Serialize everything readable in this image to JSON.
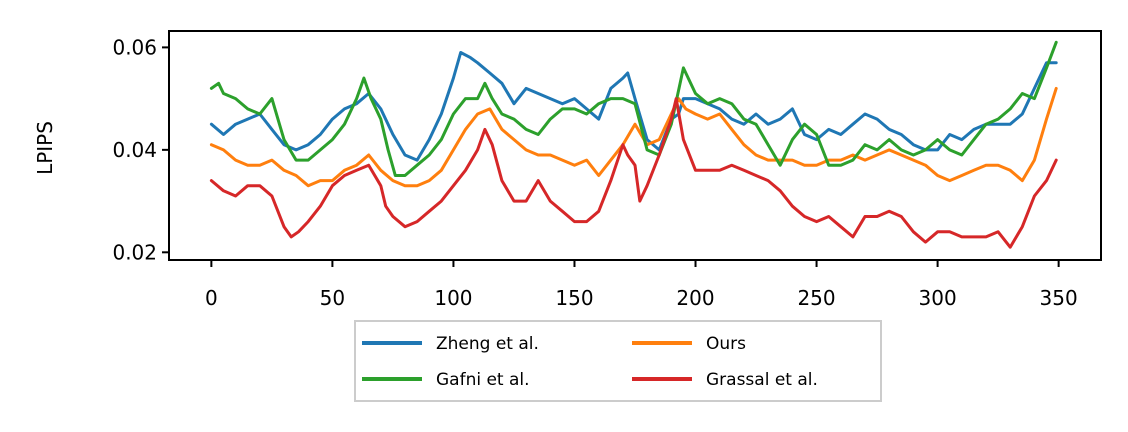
{
  "chart_data": {
    "type": "line",
    "title": "",
    "xlabel": "",
    "ylabel": "LPIPS",
    "xlim": [
      -17.5,
      367.5
    ],
    "ylim": [
      0.0185,
      0.0632
    ],
    "xticks": [
      0,
      50,
      100,
      150,
      200,
      250,
      300,
      350
    ],
    "xtick_labels": [
      "0",
      "50",
      "100",
      "150",
      "200",
      "250",
      "300",
      "350"
    ],
    "yticks": [
      0.02,
      0.04,
      0.06
    ],
    "ytick_labels": [
      "0.02",
      "0.04",
      "0.06"
    ],
    "grid": false,
    "legend_placement": "below the plot, centered, two columns",
    "series": [
      {
        "name": "Zheng et al.",
        "color": "#1f77b4",
        "points": [
          [
            0,
            0.045
          ],
          [
            5,
            0.043
          ],
          [
            10,
            0.045
          ],
          [
            15,
            0.046
          ],
          [
            20,
            0.047
          ],
          [
            25,
            0.044
          ],
          [
            30,
            0.041
          ],
          [
            35,
            0.04
          ],
          [
            40,
            0.041
          ],
          [
            45,
            0.043
          ],
          [
            50,
            0.046
          ],
          [
            55,
            0.048
          ],
          [
            60,
            0.049
          ],
          [
            65,
            0.051
          ],
          [
            70,
            0.048
          ],
          [
            75,
            0.043
          ],
          [
            80,
            0.039
          ],
          [
            85,
            0.038
          ],
          [
            90,
            0.042
          ],
          [
            95,
            0.047
          ],
          [
            100,
            0.054
          ],
          [
            103,
            0.059
          ],
          [
            107,
            0.058
          ],
          [
            110,
            0.057
          ],
          [
            115,
            0.055
          ],
          [
            120,
            0.053
          ],
          [
            125,
            0.049
          ],
          [
            130,
            0.052
          ],
          [
            135,
            0.051
          ],
          [
            140,
            0.05
          ],
          [
            145,
            0.049
          ],
          [
            150,
            0.05
          ],
          [
            155,
            0.048
          ],
          [
            160,
            0.046
          ],
          [
            165,
            0.052
          ],
          [
            170,
            0.054
          ],
          [
            172,
            0.055
          ],
          [
            175,
            0.05
          ],
          [
            180,
            0.042
          ],
          [
            185,
            0.04
          ],
          [
            190,
            0.046
          ],
          [
            193,
            0.047
          ],
          [
            195,
            0.05
          ],
          [
            200,
            0.05
          ],
          [
            205,
            0.049
          ],
          [
            210,
            0.048
          ],
          [
            215,
            0.046
          ],
          [
            220,
            0.045
          ],
          [
            225,
            0.047
          ],
          [
            230,
            0.045
          ],
          [
            235,
            0.046
          ],
          [
            240,
            0.048
          ],
          [
            245,
            0.043
          ],
          [
            250,
            0.042
          ],
          [
            255,
            0.044
          ],
          [
            260,
            0.043
          ],
          [
            265,
            0.045
          ],
          [
            270,
            0.047
          ],
          [
            275,
            0.046
          ],
          [
            280,
            0.044
          ],
          [
            285,
            0.043
          ],
          [
            290,
            0.041
          ],
          [
            295,
            0.04
          ],
          [
            300,
            0.04
          ],
          [
            305,
            0.043
          ],
          [
            310,
            0.042
          ],
          [
            315,
            0.044
          ],
          [
            320,
            0.045
          ],
          [
            325,
            0.045
          ],
          [
            330,
            0.045
          ],
          [
            335,
            0.047
          ],
          [
            340,
            0.052
          ],
          [
            345,
            0.057
          ],
          [
            349,
            0.057
          ]
        ]
      },
      {
        "name": "Ours",
        "color": "#ff7f0e",
        "points": [
          [
            0,
            0.041
          ],
          [
            5,
            0.04
          ],
          [
            10,
            0.038
          ],
          [
            15,
            0.037
          ],
          [
            20,
            0.037
          ],
          [
            25,
            0.038
          ],
          [
            30,
            0.036
          ],
          [
            35,
            0.035
          ],
          [
            40,
            0.033
          ],
          [
            45,
            0.034
          ],
          [
            50,
            0.034
          ],
          [
            55,
            0.036
          ],
          [
            60,
            0.037
          ],
          [
            65,
            0.039
          ],
          [
            70,
            0.036
          ],
          [
            75,
            0.034
          ],
          [
            80,
            0.033
          ],
          [
            85,
            0.033
          ],
          [
            90,
            0.034
          ],
          [
            95,
            0.036
          ],
          [
            100,
            0.04
          ],
          [
            105,
            0.044
          ],
          [
            110,
            0.047
          ],
          [
            115,
            0.048
          ],
          [
            120,
            0.044
          ],
          [
            125,
            0.042
          ],
          [
            130,
            0.04
          ],
          [
            135,
            0.039
          ],
          [
            140,
            0.039
          ],
          [
            145,
            0.038
          ],
          [
            150,
            0.037
          ],
          [
            155,
            0.038
          ],
          [
            160,
            0.035
          ],
          [
            165,
            0.038
          ],
          [
            170,
            0.041
          ],
          [
            175,
            0.045
          ],
          [
            180,
            0.041
          ],
          [
            185,
            0.042
          ],
          [
            190,
            0.047
          ],
          [
            193,
            0.05
          ],
          [
            196,
            0.048
          ],
          [
            200,
            0.047
          ],
          [
            205,
            0.046
          ],
          [
            210,
            0.047
          ],
          [
            215,
            0.044
          ],
          [
            220,
            0.041
          ],
          [
            225,
            0.039
          ],
          [
            230,
            0.038
          ],
          [
            235,
            0.038
          ],
          [
            240,
            0.038
          ],
          [
            245,
            0.037
          ],
          [
            250,
            0.037
          ],
          [
            255,
            0.038
          ],
          [
            260,
            0.038
          ],
          [
            265,
            0.039
          ],
          [
            270,
            0.038
          ],
          [
            275,
            0.039
          ],
          [
            280,
            0.04
          ],
          [
            285,
            0.039
          ],
          [
            290,
            0.038
          ],
          [
            295,
            0.037
          ],
          [
            300,
            0.035
          ],
          [
            305,
            0.034
          ],
          [
            310,
            0.035
          ],
          [
            315,
            0.036
          ],
          [
            320,
            0.037
          ],
          [
            325,
            0.037
          ],
          [
            330,
            0.036
          ],
          [
            335,
            0.034
          ],
          [
            340,
            0.038
          ],
          [
            345,
            0.046
          ],
          [
            349,
            0.052
          ]
        ]
      },
      {
        "name": "Gafni et al.",
        "color": "#2ca02c",
        "points": [
          [
            0,
            0.052
          ],
          [
            3,
            0.053
          ],
          [
            5,
            0.051
          ],
          [
            10,
            0.05
          ],
          [
            15,
            0.048
          ],
          [
            20,
            0.047
          ],
          [
            25,
            0.05
          ],
          [
            30,
            0.042
          ],
          [
            35,
            0.038
          ],
          [
            40,
            0.038
          ],
          [
            45,
            0.04
          ],
          [
            50,
            0.042
          ],
          [
            55,
            0.045
          ],
          [
            60,
            0.05
          ],
          [
            63,
            0.054
          ],
          [
            66,
            0.05
          ],
          [
            70,
            0.046
          ],
          [
            73,
            0.04
          ],
          [
            76,
            0.035
          ],
          [
            80,
            0.035
          ],
          [
            85,
            0.037
          ],
          [
            90,
            0.039
          ],
          [
            95,
            0.042
          ],
          [
            100,
            0.047
          ],
          [
            105,
            0.05
          ],
          [
            110,
            0.05
          ],
          [
            113,
            0.053
          ],
          [
            116,
            0.05
          ],
          [
            120,
            0.047
          ],
          [
            125,
            0.046
          ],
          [
            130,
            0.044
          ],
          [
            135,
            0.043
          ],
          [
            140,
            0.046
          ],
          [
            145,
            0.048
          ],
          [
            150,
            0.048
          ],
          [
            155,
            0.047
          ],
          [
            160,
            0.049
          ],
          [
            165,
            0.05
          ],
          [
            170,
            0.05
          ],
          [
            175,
            0.049
          ],
          [
            180,
            0.04
          ],
          [
            185,
            0.039
          ],
          [
            190,
            0.045
          ],
          [
            195,
            0.056
          ],
          [
            200,
            0.051
          ],
          [
            205,
            0.049
          ],
          [
            210,
            0.05
          ],
          [
            215,
            0.049
          ],
          [
            220,
            0.046
          ],
          [
            225,
            0.045
          ],
          [
            230,
            0.041
          ],
          [
            235,
            0.037
          ],
          [
            240,
            0.042
          ],
          [
            245,
            0.045
          ],
          [
            250,
            0.043
          ],
          [
            255,
            0.037
          ],
          [
            260,
            0.037
          ],
          [
            265,
            0.038
          ],
          [
            270,
            0.041
          ],
          [
            275,
            0.04
          ],
          [
            280,
            0.042
          ],
          [
            285,
            0.04
          ],
          [
            290,
            0.039
          ],
          [
            295,
            0.04
          ],
          [
            300,
            0.042
          ],
          [
            305,
            0.04
          ],
          [
            310,
            0.039
          ],
          [
            315,
            0.042
          ],
          [
            320,
            0.045
          ],
          [
            325,
            0.046
          ],
          [
            330,
            0.048
          ],
          [
            335,
            0.051
          ],
          [
            340,
            0.05
          ],
          [
            345,
            0.056
          ],
          [
            349,
            0.061
          ]
        ]
      },
      {
        "name": "Grassal et al.",
        "color": "#d62728",
        "points": [
          [
            0,
            0.034
          ],
          [
            5,
            0.032
          ],
          [
            10,
            0.031
          ],
          [
            15,
            0.033
          ],
          [
            20,
            0.033
          ],
          [
            25,
            0.031
          ],
          [
            30,
            0.025
          ],
          [
            33,
            0.023
          ],
          [
            36,
            0.024
          ],
          [
            40,
            0.026
          ],
          [
            45,
            0.029
          ],
          [
            50,
            0.033
          ],
          [
            55,
            0.035
          ],
          [
            60,
            0.036
          ],
          [
            65,
            0.037
          ],
          [
            70,
            0.033
          ],
          [
            72,
            0.029
          ],
          [
            75,
            0.027
          ],
          [
            80,
            0.025
          ],
          [
            85,
            0.026
          ],
          [
            90,
            0.028
          ],
          [
            95,
            0.03
          ],
          [
            100,
            0.033
          ],
          [
            105,
            0.036
          ],
          [
            110,
            0.04
          ],
          [
            113,
            0.044
          ],
          [
            116,
            0.041
          ],
          [
            120,
            0.034
          ],
          [
            125,
            0.03
          ],
          [
            130,
            0.03
          ],
          [
            135,
            0.034
          ],
          [
            140,
            0.03
          ],
          [
            145,
            0.028
          ],
          [
            150,
            0.026
          ],
          [
            155,
            0.026
          ],
          [
            160,
            0.028
          ],
          [
            165,
            0.034
          ],
          [
            170,
            0.041
          ],
          [
            172,
            0.039
          ],
          [
            175,
            0.037
          ],
          [
            177,
            0.03
          ],
          [
            180,
            0.033
          ],
          [
            185,
            0.039
          ],
          [
            190,
            0.046
          ],
          [
            192,
            0.05
          ],
          [
            195,
            0.042
          ],
          [
            200,
            0.036
          ],
          [
            205,
            0.036
          ],
          [
            210,
            0.036
          ],
          [
            215,
            0.037
          ],
          [
            220,
            0.036
          ],
          [
            225,
            0.035
          ],
          [
            230,
            0.034
          ],
          [
            235,
            0.032
          ],
          [
            240,
            0.029
          ],
          [
            245,
            0.027
          ],
          [
            250,
            0.026
          ],
          [
            255,
            0.027
          ],
          [
            260,
            0.025
          ],
          [
            265,
            0.023
          ],
          [
            270,
            0.027
          ],
          [
            275,
            0.027
          ],
          [
            280,
            0.028
          ],
          [
            285,
            0.027
          ],
          [
            290,
            0.024
          ],
          [
            295,
            0.022
          ],
          [
            300,
            0.024
          ],
          [
            305,
            0.024
          ],
          [
            310,
            0.023
          ],
          [
            315,
            0.023
          ],
          [
            320,
            0.023
          ],
          [
            325,
            0.024
          ],
          [
            330,
            0.021
          ],
          [
            335,
            0.025
          ],
          [
            340,
            0.031
          ],
          [
            345,
            0.034
          ],
          [
            349,
            0.038
          ]
        ]
      }
    ]
  }
}
